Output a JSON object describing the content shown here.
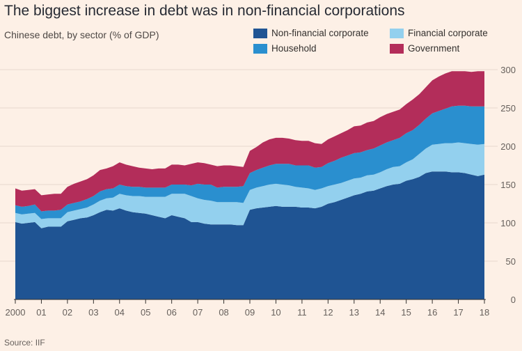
{
  "header": {
    "title": "The biggest increase in debt was in non-financial corporations",
    "subtitle": "Chinese debt, by sector (% of GDP)"
  },
  "footer": {
    "source": "Source: IIF"
  },
  "chart_data": {
    "type": "area",
    "stacked": true,
    "title": "The biggest increase in debt was in non-financial corporations",
    "subtitle": "Chinese debt, by sector (% of GDP)",
    "source": "Source: IIF",
    "xlabel": "",
    "ylabel": "",
    "ylim": [
      0,
      300
    ],
    "y_ticks": [
      0,
      50,
      100,
      150,
      200,
      250,
      300
    ],
    "y_axis_position": "right",
    "grid": true,
    "legend_position": "top-right",
    "x_ticks": [
      {
        "value": 2000,
        "label": "2000"
      },
      {
        "value": 2001,
        "label": "01"
      },
      {
        "value": 2002,
        "label": "02"
      },
      {
        "value": 2003,
        "label": "03"
      },
      {
        "value": 2004,
        "label": "04"
      },
      {
        "value": 2005,
        "label": "05"
      },
      {
        "value": 2006,
        "label": "06"
      },
      {
        "value": 2007,
        "label": "07"
      },
      {
        "value": 2008,
        "label": "08"
      },
      {
        "value": 2009,
        "label": "09"
      },
      {
        "value": 2010,
        "label": "10"
      },
      {
        "value": 2011,
        "label": "11"
      },
      {
        "value": 2012,
        "label": "12"
      },
      {
        "value": 2013,
        "label": "13"
      },
      {
        "value": 2014,
        "label": "14"
      },
      {
        "value": 2015,
        "label": "15"
      },
      {
        "value": 2016,
        "label": "16"
      },
      {
        "value": 2017,
        "label": "17"
      },
      {
        "value": 2018,
        "label": "18"
      }
    ],
    "x": [
      2000,
      2000.25,
      2000.5,
      2000.75,
      2001,
      2001.25,
      2001.5,
      2001.75,
      2002,
      2002.25,
      2002.5,
      2002.75,
      2003,
      2003.25,
      2003.5,
      2003.75,
      2004,
      2004.25,
      2004.5,
      2004.75,
      2005,
      2005.25,
      2005.5,
      2005.75,
      2006,
      2006.25,
      2006.5,
      2006.75,
      2007,
      2007.25,
      2007.5,
      2007.75,
      2008,
      2008.25,
      2008.5,
      2008.75,
      2009,
      2009.25,
      2009.5,
      2009.75,
      2010,
      2010.25,
      2010.5,
      2010.75,
      2011,
      2011.25,
      2011.5,
      2011.75,
      2012,
      2012.25,
      2012.5,
      2012.75,
      2013,
      2013.25,
      2013.5,
      2013.75,
      2014,
      2014.25,
      2014.5,
      2014.75,
      2015,
      2015.25,
      2015.5,
      2015.75,
      2016,
      2016.25,
      2016.5,
      2016.75,
      2017,
      2017.25,
      2017.5,
      2017.75,
      2018
    ],
    "series": [
      {
        "name": "Non-financial corporate",
        "color": "#1f5493",
        "values": [
          101,
          99,
          100,
          101,
          93,
          95,
          95,
          95,
          102,
          104,
          106,
          107,
          110,
          114,
          117,
          116,
          119,
          116,
          114,
          113,
          112,
          110,
          108,
          106,
          110,
          108,
          106,
          101,
          101,
          99,
          98,
          98,
          98,
          98,
          97,
          97,
          117,
          119,
          120,
          121,
          122,
          121,
          121,
          121,
          120,
          120,
          119,
          121,
          125,
          127,
          130,
          133,
          136,
          138,
          141,
          142,
          145,
          148,
          150,
          151,
          155,
          157,
          160,
          165,
          167,
          167,
          167,
          166,
          166,
          165,
          163,
          161,
          163
        ]
      },
      {
        "name": "Financial corporate",
        "color": "#93d0ee",
        "values": [
          12,
          12,
          12,
          12,
          12,
          11,
          11,
          11,
          12,
          12,
          12,
          13,
          14,
          15,
          15,
          17,
          19,
          20,
          21,
          22,
          22,
          24,
          26,
          28,
          28,
          30,
          32,
          34,
          31,
          31,
          31,
          29,
          29,
          29,
          30,
          29,
          26,
          27,
          28,
          29,
          29,
          29,
          28,
          26,
          26,
          25,
          24,
          24,
          23,
          23,
          22,
          22,
          22,
          21,
          21,
          21,
          21,
          22,
          23,
          23,
          24,
          26,
          30,
          32,
          35,
          36,
          37,
          38,
          39,
          39,
          40,
          41,
          40
        ]
      },
      {
        "name": "Household",
        "color": "#2a8fcf",
        "values": [
          10,
          10,
          10,
          11,
          10,
          10,
          10,
          11,
          10,
          10,
          10,
          11,
          11,
          12,
          12,
          12,
          12,
          12,
          12,
          12,
          12,
          12,
          12,
          12,
          12,
          12,
          12,
          14,
          19,
          20,
          21,
          19,
          20,
          20,
          20,
          22,
          22,
          23,
          24,
          25,
          26,
          27,
          28,
          28,
          29,
          30,
          29,
          28,
          30,
          31,
          33,
          33,
          33,
          33,
          33,
          34,
          35,
          35,
          35,
          37,
          38,
          38,
          38,
          39,
          41,
          43,
          45,
          48,
          48,
          49,
          49,
          50,
          49
        ]
      },
      {
        "name": "Government",
        "color": "#b32d5a",
        "values": [
          22,
          21,
          21,
          20,
          21,
          21,
          22,
          21,
          23,
          25,
          26,
          26,
          27,
          28,
          27,
          29,
          29,
          28,
          27,
          25,
          25,
          24,
          25,
          25,
          26,
          26,
          25,
          28,
          28,
          28,
          26,
          28,
          28,
          28,
          27,
          25,
          29,
          30,
          33,
          34,
          34,
          34,
          33,
          33,
          32,
          32,
          32,
          30,
          31,
          32,
          32,
          33,
          35,
          35,
          36,
          36,
          37,
          37,
          37,
          37,
          38,
          40,
          40,
          41,
          43,
          45,
          46,
          46,
          45,
          45,
          45,
          46,
          46
        ]
      }
    ]
  }
}
